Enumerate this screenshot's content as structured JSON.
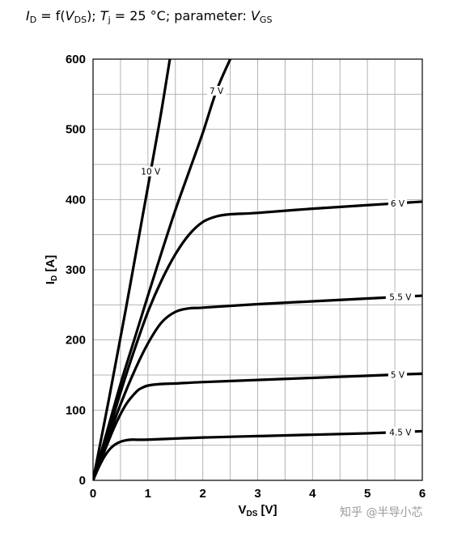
{
  "title": {
    "id": "I",
    "id_sub": "D",
    "eq": " = f(",
    "v": "V",
    "v_sub": "DS",
    "mid": "); ",
    "t": "T",
    "t_sub": "j",
    "rest": " = 25 °C; parameter: ",
    "vg": "V",
    "vg_sub": "GS"
  },
  "watermark": "知乎 @半导小芯",
  "chart_data": {
    "type": "line",
    "title": "ID = f(VDS); Tj = 25 °C; parameter: VGS",
    "xlabel": "VDS [V]",
    "ylabel": "ID [A]",
    "xlim": [
      0,
      6
    ],
    "ylim": [
      0,
      600
    ],
    "xticks": [
      0,
      1,
      2,
      3,
      4,
      5,
      6
    ],
    "yticks": [
      0,
      100,
      200,
      300,
      400,
      500,
      600
    ],
    "grid": true,
    "series": [
      {
        "name": "4.5 V",
        "label_x": 5.6,
        "x": [
          0,
          0.1,
          0.2,
          0.3,
          0.4,
          0.5,
          0.6,
          0.7,
          1.0,
          2.0,
          3.0,
          4.0,
          5.0,
          6.0
        ],
        "y": [
          0,
          18,
          33,
          44,
          51,
          55,
          57,
          58,
          58,
          61,
          63,
          65,
          67,
          70
        ]
      },
      {
        "name": "5 V",
        "label_x": 5.55,
        "x": [
          0,
          0.2,
          0.4,
          0.6,
          0.8,
          0.9,
          1.0,
          1.2,
          1.5,
          2.0,
          3.0,
          4.0,
          5.0,
          6.0
        ],
        "y": [
          0,
          40,
          78,
          108,
          127,
          132,
          135,
          137,
          138,
          140,
          143,
          146,
          149,
          152
        ]
      },
      {
        "name": "5.5 V",
        "label_x": 5.6,
        "x": [
          0,
          0.25,
          0.5,
          0.75,
          1.0,
          1.25,
          1.5,
          1.75,
          2.0,
          3.0,
          4.0,
          5.0,
          6.0
        ],
        "y": [
          0,
          55,
          108,
          155,
          195,
          225,
          240,
          245,
          246,
          251,
          255,
          259,
          263
        ]
      },
      {
        "name": "6 V",
        "label_x": 5.55,
        "x": [
          0,
          0.25,
          0.5,
          0.75,
          1.0,
          1.25,
          1.5,
          1.75,
          2.0,
          2.25,
          2.5,
          3.0,
          4.0,
          5.0,
          6.0
        ],
        "y": [
          0,
          60,
          125,
          185,
          240,
          285,
          322,
          350,
          368,
          376,
          379,
          381,
          387,
          392,
          397
        ]
      },
      {
        "name": "7 V",
        "label_x": 2.25,
        "x": [
          0,
          0.25,
          0.5,
          0.75,
          1.0,
          1.25,
          1.5,
          1.75,
          2.0,
          2.25,
          2.5
        ],
        "y": [
          0,
          68,
          137,
          200,
          263,
          325,
          385,
          440,
          495,
          555,
          600
        ]
      },
      {
        "name": "10 V",
        "label_x": 1.05,
        "x": [
          0,
          0.3,
          0.6,
          0.9,
          1.2,
          1.4
        ],
        "y": [
          0,
          120,
          245,
          375,
          505,
          600
        ]
      }
    ]
  }
}
